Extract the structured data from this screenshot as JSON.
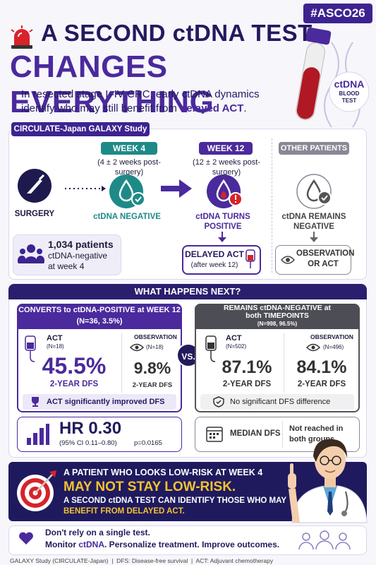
{
  "header": {
    "badge": "#ASCO26",
    "title_line1": "A SECOND ctDNA TEST",
    "title_line2": "CHANGES EVERYTHING",
    "subtitle_lead": "In resected stage I–IV CRC, early ctDNA dynamics identify who may still benefit from",
    "subtitle_highlight": "delayed ACT",
    "subtitle_end": ".",
    "tube_label_top": "ctDNA",
    "tube_label_bottom": "BLOOD TEST"
  },
  "study": {
    "label": "CIRCULATE-Japan GALAXY Study",
    "surgery": "SURGERY",
    "week4": {
      "badge": "WEEK 4",
      "timing": "(4 ± 2 weeks post-surgery)",
      "status": "ctDNA NEGATIVE"
    },
    "week12": {
      "badge": "WEEK 12",
      "timing": "(12 ± 2 weeks post-surgery)",
      "status": "ctDNA TURNS POSITIVE"
    },
    "other": {
      "badge": "OTHER PATIENTS",
      "status": "ctDNA REMAINS NEGATIVE"
    },
    "patients": {
      "count": "1,034 patients",
      "note": "ctDNA-negative at week 4"
    },
    "delayed": {
      "title": "DELAYED ACT",
      "note": "(after week 12)"
    },
    "observation": "OBSERVATION OR ACT"
  },
  "results": {
    "heading": "WHAT HAPPENS NEXT?",
    "vs": "VS.",
    "converts": {
      "title": "CONVERTS to ctDNA-POSITIVE at WEEK 12",
      "n": "(N=36, 3.5%)",
      "act": {
        "label": "ACT",
        "n": "(N=18)",
        "value": "45.5%",
        "metric": "2-YEAR DFS"
      },
      "observation": {
        "label": "OBSERVATION",
        "n": "(N=18)",
        "value": "9.8%",
        "metric": "2-YEAR DFS"
      },
      "note": "ACT significantly improved DFS",
      "hr": "HR 0.30",
      "ci": "(95% CI 0.11–0.80)",
      "p": "p=0.0165"
    },
    "remains": {
      "title": "REMAINS ctDNA-NEGATIVE at both TIMEPOINTS",
      "n": "(N=998, 96.5%)",
      "act": {
        "label": "ACT",
        "n": "(N=502)",
        "value": "87.1%",
        "metric": "2-YEAR DFS"
      },
      "observation": {
        "label": "OBSERVATION",
        "n": "(N=496)",
        "value": "84.1%",
        "metric": "2-YEAR DFS"
      },
      "note": "No significant DFS difference",
      "median_label": "MEDIAN DFS",
      "median_value": "Not reached in both groups"
    }
  },
  "banner": {
    "line1": "A PATIENT WHO LOOKS LOW-RISK AT WEEK 4",
    "line2": "MAY NOT STAY LOW-RISK.",
    "line3": "A SECOND ctDNA TEST CAN IDENTIFY THOSE WHO MAY",
    "line4": "BENEFIT FROM DELAYED ACT."
  },
  "takeaway": {
    "line1": "Don't rely on a single test.",
    "line2_lead": "Monitor",
    "line2_highlight": "ctDNA",
    "line2_end": ". Personalize treatment. Improve outcomes."
  },
  "footnote": {
    "study": "GALAXY Study (CIRCULATE-Japan)",
    "dfs": "DFS: Disease-free survival",
    "act": "ACT: Adjuvant chemotherapy"
  }
}
